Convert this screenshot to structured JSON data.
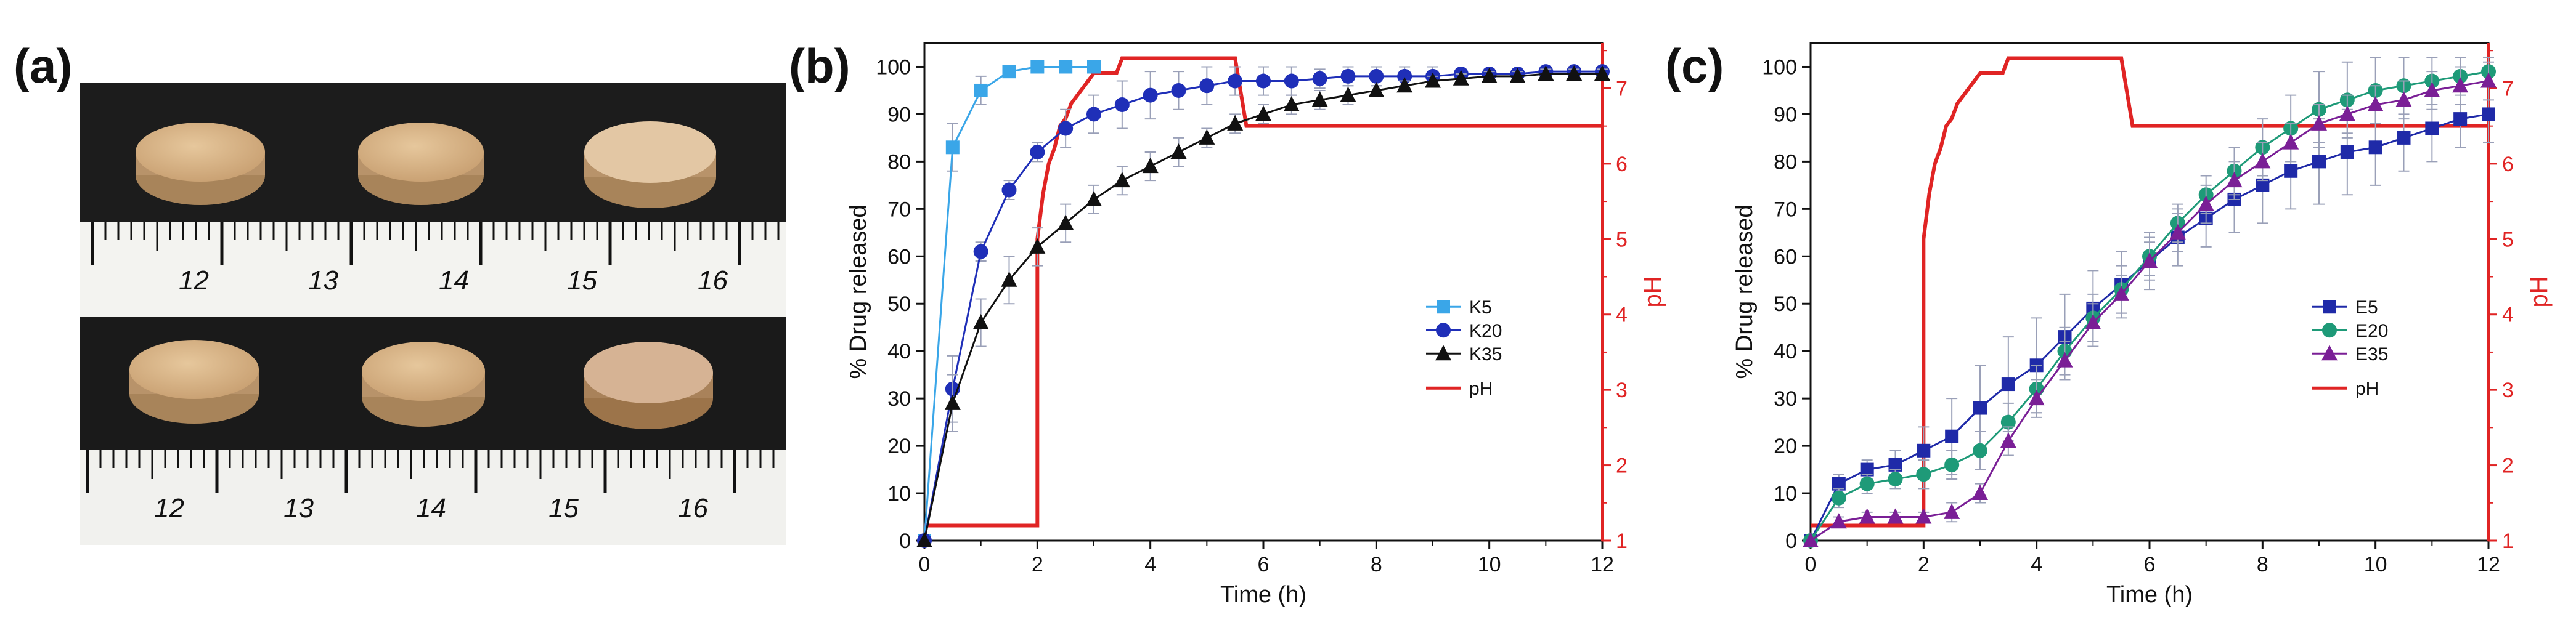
{
  "panel_labels": {
    "a": "(a)",
    "b": "(b)",
    "c": "(c)"
  },
  "photo": {
    "ruler_numbers": [
      "12",
      "13",
      "14",
      "15",
      "16"
    ],
    "colors": {
      "mat": "#1c1c1c",
      "tablet": "#d8b58a",
      "tablet_shadow": "#b48f62",
      "ruler": "#f3f3f0"
    }
  },
  "chart_data": [
    {
      "type": "line",
      "panel": "(b)",
      "xlabel": "Time (h)",
      "ylabel": "% Drug released",
      "y2label": "pH",
      "xlim": [
        0,
        12
      ],
      "ylim": [
        0,
        105
      ],
      "y2lim": [
        1,
        7.6
      ],
      "xticks": [
        0,
        2,
        4,
        6,
        8,
        10,
        12
      ],
      "yticks": [
        0,
        10,
        20,
        30,
        40,
        50,
        60,
        70,
        80,
        90,
        100
      ],
      "y2ticks": [
        1,
        2,
        3,
        4,
        5,
        6,
        7
      ],
      "legend_position": "center-right",
      "series": [
        {
          "name": "K5",
          "marker": "square",
          "color": "#3aa6e8",
          "x": [
            0,
            0.5,
            1,
            1.5,
            2,
            2.5,
            3
          ],
          "y": [
            0,
            83,
            95,
            99,
            100,
            100,
            100
          ],
          "err": [
            0,
            5,
            3,
            1,
            1,
            1,
            1
          ]
        },
        {
          "name": "K20",
          "marker": "circle",
          "color": "#1f2fb8",
          "x": [
            0,
            0.5,
            1,
            1.5,
            2,
            2.5,
            3,
            3.5,
            4,
            4.5,
            5,
            5.5,
            6,
            6.5,
            7,
            7.5,
            8,
            8.5,
            9,
            9.5,
            10,
            10.5,
            11,
            11.5,
            12
          ],
          "y": [
            0,
            32,
            61,
            74,
            82,
            87,
            90,
            92,
            94,
            95,
            96,
            97,
            97,
            97,
            97.5,
            98,
            98,
            98,
            98,
            98.5,
            98.5,
            98.5,
            99,
            99,
            99
          ],
          "err": [
            0,
            7,
            2,
            2,
            2,
            4,
            4,
            5,
            5,
            4,
            4,
            3,
            3,
            3,
            2,
            2,
            2,
            2,
            2,
            1,
            1,
            1,
            1,
            1,
            1
          ]
        },
        {
          "name": "K35",
          "marker": "triangle",
          "color": "#111111",
          "x": [
            0,
            0.5,
            1,
            1.5,
            2,
            2.5,
            3,
            3.5,
            4,
            4.5,
            5,
            5.5,
            6,
            6.5,
            7,
            7.5,
            8,
            8.5,
            9,
            9.5,
            10,
            10.5,
            11,
            11.5,
            12
          ],
          "y": [
            0,
            29,
            46,
            55,
            62,
            67,
            72,
            76,
            79,
            82,
            85,
            88,
            90,
            92,
            93,
            94,
            95,
            96,
            97,
            97.5,
            98,
            98,
            98.5,
            98.5,
            98.5
          ],
          "err": [
            0,
            6,
            5,
            5,
            4,
            4,
            3,
            3,
            3,
            3,
            2,
            2,
            2,
            2,
            2,
            2,
            1,
            1,
            1,
            1,
            1,
            1,
            1,
            1,
            1
          ]
        }
      ],
      "ph": {
        "name": "pH",
        "color": "#e02424",
        "x": [
          0,
          2,
          2,
          2.1,
          2.2,
          2.3,
          2.4,
          2.5,
          2.6,
          2.8,
          3.0,
          3.4,
          3.5,
          5.5,
          5.7,
          12
        ],
        "y": [
          1.2,
          1.2,
          5.0,
          5.6,
          6.0,
          6.2,
          6.5,
          6.6,
          6.8,
          7.0,
          7.2,
          7.2,
          7.4,
          7.4,
          6.5,
          6.5
        ]
      }
    },
    {
      "type": "line",
      "panel": "(c)",
      "xlabel": "Time (h)",
      "ylabel": "% Drug released",
      "y2label": "pH",
      "xlim": [
        0,
        12
      ],
      "ylim": [
        0,
        105
      ],
      "y2lim": [
        1,
        7.6
      ],
      "xticks": [
        0,
        2,
        4,
        6,
        8,
        10,
        12
      ],
      "yticks": [
        0,
        10,
        20,
        30,
        40,
        50,
        60,
        70,
        80,
        90,
        100
      ],
      "y2ticks": [
        1,
        2,
        3,
        4,
        5,
        6,
        7
      ],
      "legend_position": "center-right",
      "series": [
        {
          "name": "E5",
          "marker": "square",
          "color": "#1f2aa8",
          "x": [
            0,
            0.5,
            1,
            1.5,
            2,
            2.5,
            3,
            3.5,
            4,
            4.5,
            5,
            5.5,
            6,
            6.5,
            7,
            7.5,
            8,
            8.5,
            9,
            9.5,
            10,
            10.5,
            11,
            11.5,
            12
          ],
          "y": [
            0,
            12,
            15,
            16,
            19,
            22,
            28,
            33,
            37,
            43,
            49,
            54,
            59,
            64,
            68,
            72,
            75,
            78,
            80,
            82,
            83,
            85,
            87,
            89,
            90
          ],
          "err": [
            0,
            2,
            2,
            3,
            5,
            8,
            9,
            10,
            10,
            9,
            8,
            7,
            6,
            6,
            6,
            7,
            8,
            8,
            9,
            9,
            8,
            7,
            7,
            6,
            6
          ]
        },
        {
          "name": "E20",
          "marker": "circle",
          "color": "#1e9a78",
          "x": [
            0,
            0.5,
            1,
            1.5,
            2,
            2.5,
            3,
            3.5,
            4,
            4.5,
            5,
            5.5,
            6,
            6.5,
            7,
            7.5,
            8,
            8.5,
            9,
            9.5,
            10,
            10.5,
            11,
            11.5,
            12
          ],
          "y": [
            0,
            9,
            12,
            13,
            14,
            16,
            19,
            25,
            32,
            40,
            47,
            53,
            60,
            67,
            73,
            78,
            83,
            87,
            91,
            93,
            95,
            96,
            97,
            98,
            99
          ],
          "err": [
            0,
            2,
            2,
            2,
            3,
            3,
            4,
            4,
            5,
            5,
            5,
            5,
            4,
            4,
            4,
            5,
            6,
            7,
            8,
            8,
            7,
            6,
            5,
            4,
            3
          ]
        },
        {
          "name": "E35",
          "marker": "triangle",
          "color": "#7a1f96",
          "x": [
            0,
            0.5,
            1,
            1.5,
            2,
            2.5,
            3,
            3.5,
            4,
            4.5,
            5,
            5.5,
            6,
            6.5,
            7,
            7.5,
            8,
            8.5,
            9,
            9.5,
            10,
            10.5,
            11,
            11.5,
            12
          ],
          "y": [
            0,
            4,
            5,
            5,
            5,
            6,
            10,
            21,
            30,
            38,
            46,
            52,
            59,
            65,
            71,
            76,
            80,
            84,
            88,
            90,
            92,
            93,
            95,
            96,
            97
          ],
          "err": [
            0,
            1,
            1,
            1,
            1,
            2,
            2,
            3,
            4,
            4,
            4,
            4,
            4,
            4,
            4,
            4,
            4,
            4,
            4,
            4,
            4,
            4,
            4,
            4,
            4
          ]
        }
      ],
      "ph": {
        "name": "pH",
        "color": "#e02424",
        "x": [
          0,
          2,
          2,
          2.1,
          2.2,
          2.3,
          2.4,
          2.5,
          2.6,
          2.8,
          3.0,
          3.4,
          3.5,
          5.5,
          5.7,
          12
        ],
        "y": [
          1.2,
          1.2,
          5.0,
          5.6,
          6.0,
          6.2,
          6.5,
          6.6,
          6.8,
          7.0,
          7.2,
          7.2,
          7.4,
          7.4,
          6.5,
          6.5
        ]
      }
    }
  ]
}
